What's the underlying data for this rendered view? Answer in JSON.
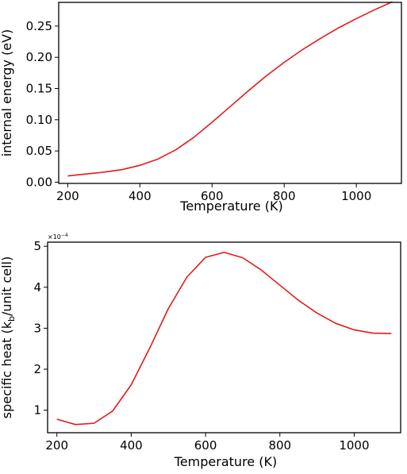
{
  "chart_data": [
    {
      "type": "line",
      "color": "#e41a1c",
      "xlabel": "Temperature (K)",
      "ylabel": "internal energy (eV)",
      "xlim": [
        175,
        1125
      ],
      "ylim": [
        -0.002,
        0.288
      ],
      "xticks": [
        200,
        400,
        600,
        800,
        1000
      ],
      "yticks": [
        0.0,
        0.05,
        0.1,
        0.15,
        0.2,
        0.25
      ],
      "xtick_labels": [
        "200",
        "400",
        "600",
        "800",
        "1000"
      ],
      "ytick_labels": [
        "0.00",
        "0.05",
        "0.10",
        "0.15",
        "0.20",
        "0.25"
      ],
      "offset_text": "",
      "grid": false,
      "series": [
        {
          "x": [
            200,
            250,
            300,
            350,
            400,
            450,
            500,
            550,
            600,
            650,
            700,
            750,
            800,
            850,
            900,
            950,
            1000,
            1050,
            1100
          ],
          "values": [
            0.01,
            0.013,
            0.016,
            0.02,
            0.027,
            0.037,
            0.052,
            0.072,
            0.096,
            0.121,
            0.146,
            0.17,
            0.192,
            0.212,
            0.23,
            0.247,
            0.262,
            0.276,
            0.289
          ]
        }
      ]
    },
    {
      "type": "line",
      "color": "#e41a1c",
      "xlabel": "Temperature (K)",
      "ylabel": "specific heat (k",
      "ylabel_sub": "b",
      "ylabel_tail": "/unit cell)",
      "xlim": [
        175,
        1125
      ],
      "ylim": [
        0.45,
        5.1
      ],
      "xticks": [
        200,
        400,
        600,
        800,
        1000
      ],
      "yticks": [
        1,
        2,
        3,
        4,
        5
      ],
      "xtick_labels": [
        "200",
        "400",
        "600",
        "800",
        "1000"
      ],
      "ytick_labels": [
        "1",
        "2",
        "3",
        "4",
        "5"
      ],
      "offset_text": "×10",
      "offset_exp": "−4",
      "grid": false,
      "series": [
        {
          "x": [
            200,
            250,
            300,
            350,
            400,
            450,
            500,
            550,
            600,
            650,
            700,
            750,
            800,
            850,
            900,
            950,
            1000,
            1050,
            1100
          ],
          "values": [
            0.78,
            0.65,
            0.68,
            0.98,
            1.62,
            2.52,
            3.48,
            4.25,
            4.73,
            4.85,
            4.72,
            4.42,
            4.05,
            3.68,
            3.37,
            3.12,
            2.96,
            2.88,
            2.87
          ]
        }
      ]
    }
  ]
}
